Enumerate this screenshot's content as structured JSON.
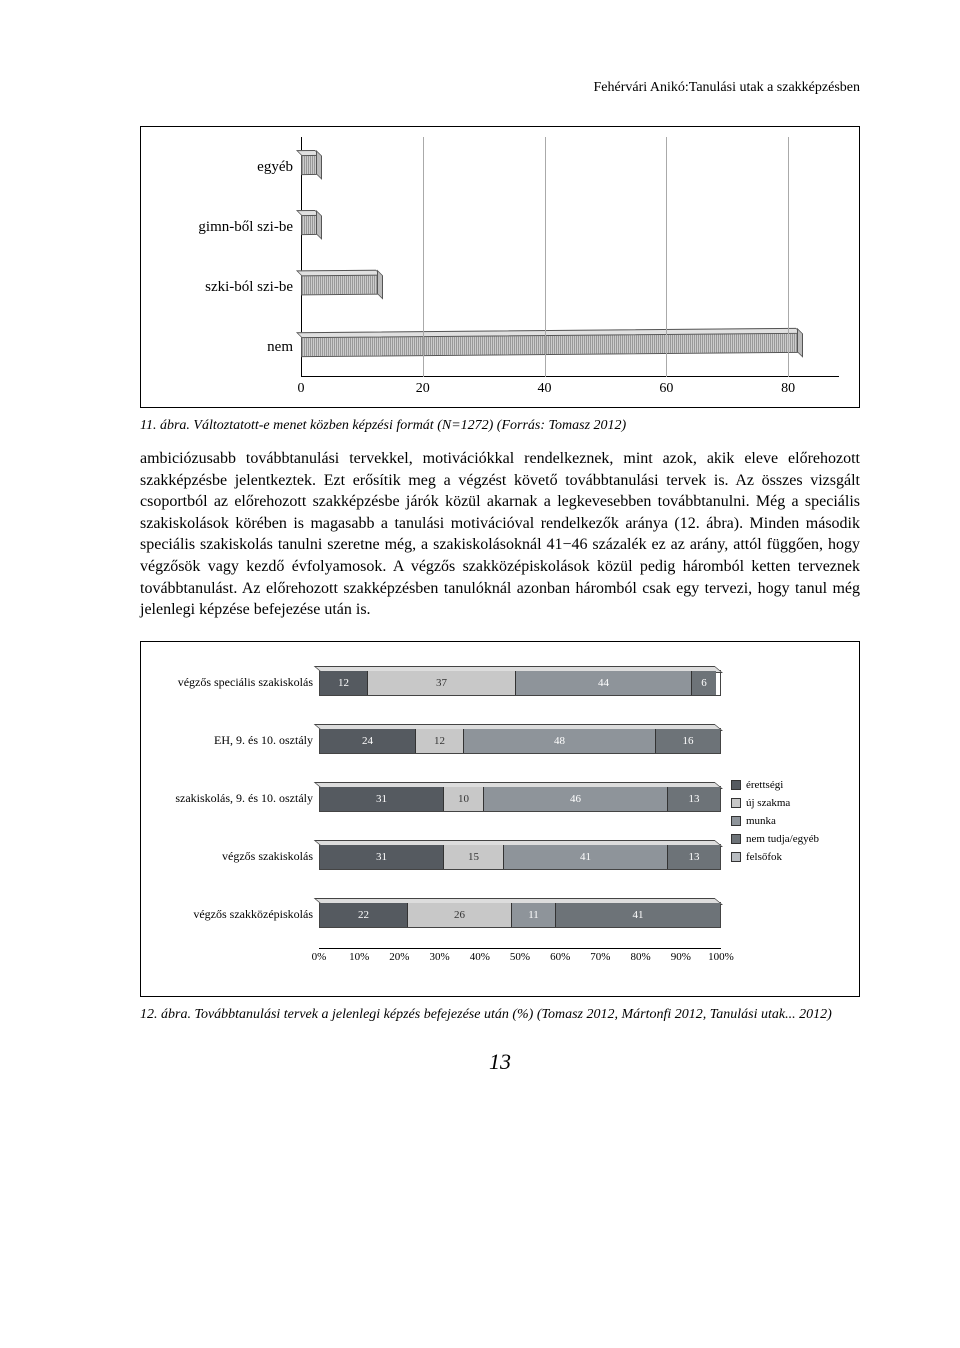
{
  "header": {
    "running_head": "Fehérvári Anikó:Tanulási utak a szakképzésben"
  },
  "chart1": {
    "type": "bar-horizontal-3d",
    "categories": [
      "egyéb",
      "gimn-ből szi-be",
      "szki-ból szi-be",
      "nem"
    ],
    "values": [
      3,
      3,
      13,
      82
    ],
    "x_ticks": [
      0,
      20,
      40,
      60,
      80
    ],
    "xlim": [
      0,
      90
    ],
    "bar_fill": "#b5b5b5",
    "bar_top": "#e0e0e0",
    "bar_side": "#9a9a9a",
    "grid_color": "#aaaaaa",
    "axis_color": "#000000",
    "label_fontsize": 15,
    "tick_fontsize": 14
  },
  "caption1": "11. ábra. Változtatott-e menet közben képzési formát (N=1272) (Forrás: Tomasz 2012)",
  "paragraph": "ambiciózusabb továbbtanulási tervekkel, motivációkkal rendelkeznek, mint azok, akik eleve előrehozott szakképzésbe jelentkeztek. Ezt erősítik meg a végzést követő továbbtanulási tervek is. Az összes vizsgált csoportból az előrehozott szakképzésbe járók közül akarnak a legkevesebben továbbtanulni. Még a speciális szakiskolások körében is magasabb a tanulási motivációval rendelkezők aránya (12. ábra). Minden második speciális szakiskolás tanulni szeretne még, a szakiskolásoknál 41−46 százalék ez az arány, attól függően, hogy végzősök vagy kezdő évfolyamosok. A végzős szakközépiskolások közül pedig háromból ketten terveznek továbbtanulást. Az előrehozott szakképzésben tanulóknál azonban háromból csak egy tervezi, hogy tanul még jelenlegi képzése befejezése után is.",
  "chart2": {
    "type": "stacked-bar-horizontal-3d-percent",
    "categories": [
      "végzős speciális szakiskolás",
      "EH, 9. és 10. osztály",
      "szakiskolás, 9. és 10. osztály",
      "végzős szakiskolás",
      "végzős szakközépiskolás"
    ],
    "series_labels": [
      "érettségi",
      "új szakma",
      "munka",
      "nem tudja/egyéb",
      "felsőfok"
    ],
    "series_colors": [
      "#555a60",
      "#c8c8c8",
      "#8e949a",
      "#6d7378",
      "#b8bcc0"
    ],
    "text_colors": [
      "#ffffff",
      "#333333",
      "#ffffff",
      "#ffffff",
      "#333333"
    ],
    "rows": [
      [
        12,
        37,
        44,
        6,
        0
      ],
      [
        24,
        12,
        48,
        16,
        0
      ],
      [
        31,
        10,
        46,
        13,
        0
      ],
      [
        31,
        15,
        41,
        13,
        0
      ],
      [
        22,
        26,
        11,
        41,
        0
      ]
    ],
    "x_ticks": [
      "0%",
      "10%",
      "20%",
      "30%",
      "40%",
      "50%",
      "60%",
      "70%",
      "80%",
      "90%",
      "100%"
    ],
    "label_fontsize": 12,
    "value_fontsize": 11,
    "legend_fontsize": 11
  },
  "caption2": "12. ábra. Továbbtanulási tervek a jelenlegi képzés befejezése után (%) (Tomasz 2012, Mártonfi 2012, Tanulási utak... 2012)",
  "page_number": "13"
}
